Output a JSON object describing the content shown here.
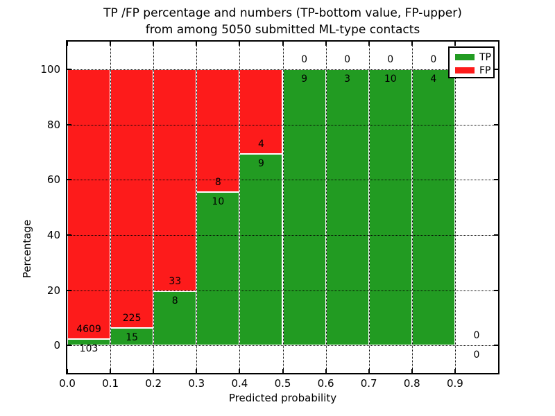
{
  "title": {
    "line1": "TP /FP percentage and numbers (TP-bottom value, FP-upper)",
    "line2": "from among 5050 submitted ML-type contacts"
  },
  "legend": {
    "items": [
      {
        "label": "TP",
        "color": "#229b22"
      },
      {
        "label": "FP",
        "color": "#fd1b1b"
      }
    ]
  },
  "chart_data": {
    "type": "bar",
    "subtype": "stacked-percentage-histogram",
    "title": "TP /FP percentage and numbers (TP-bottom value, FP-upper) from among 5050 submitted ML-type contacts",
    "xlabel": "Predicted probability",
    "ylabel": "Percentage",
    "total_contacts": 5050,
    "bin_edges": [
      0.0,
      0.1,
      0.2,
      0.3,
      0.4,
      0.5,
      0.6,
      0.7,
      0.8,
      0.9,
      1.0
    ],
    "series": [
      {
        "name": "TP",
        "color": "#229b22",
        "counts": [
          103,
          15,
          8,
          10,
          9,
          9,
          3,
          10,
          4,
          0
        ]
      },
      {
        "name": "FP",
        "color": "#fd1b1b",
        "counts": [
          4609,
          225,
          33,
          8,
          4,
          0,
          0,
          0,
          0,
          0
        ]
      }
    ],
    "annotation_rule": "FP count printed above TP/FP boundary, TP count printed below boundary",
    "xlim": [
      0.0,
      1.0
    ],
    "ylim": [
      -10,
      110
    ],
    "xticks": [
      0.0,
      0.1,
      0.2,
      0.3,
      0.4,
      0.5,
      0.6,
      0.7,
      0.8,
      0.9
    ],
    "xtick_labels": [
      "0.0",
      "0.1",
      "0.2",
      "0.3",
      "0.4",
      "0.5",
      "0.6",
      "0.7",
      "0.8",
      "0.9"
    ],
    "yticks": [
      0,
      20,
      40,
      60,
      80,
      100
    ],
    "ytick_labels": [
      "0",
      "20",
      "40",
      "60",
      "80",
      "100"
    ],
    "grid": "dotted-black-both-axes",
    "legend_position": "upper right",
    "bar_edge_color": "#ffffff"
  }
}
